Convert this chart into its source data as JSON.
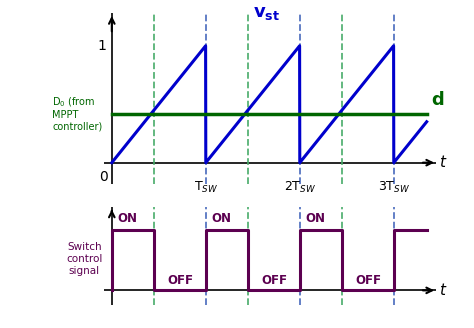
{
  "duty_ratio": 0.45,
  "n_periods": 3,
  "sawtooth_color": "#0000CC",
  "control_color": "#006600",
  "pwm_color": "#5C0050",
  "background_color": "#ffffff",
  "dashed_blue_color": "#4466BB",
  "dashed_green_color": "#44AA66",
  "label_d": "d",
  "label_D0": "D$_0$ (from\nMPPT\ncontroller)",
  "label_t_top": "t",
  "label_t_bot": "t",
  "label_switch": "Switch\ncontrol\nsignal",
  "label_tsw": "T$_{SW}$",
  "label_2tsw": "2T$_{SW}$",
  "label_3tsw": "3T$_{SW}$",
  "label_on": "ON",
  "label_off": "OFF",
  "label_0": "0",
  "label_1": "1",
  "control_level": 0.42
}
